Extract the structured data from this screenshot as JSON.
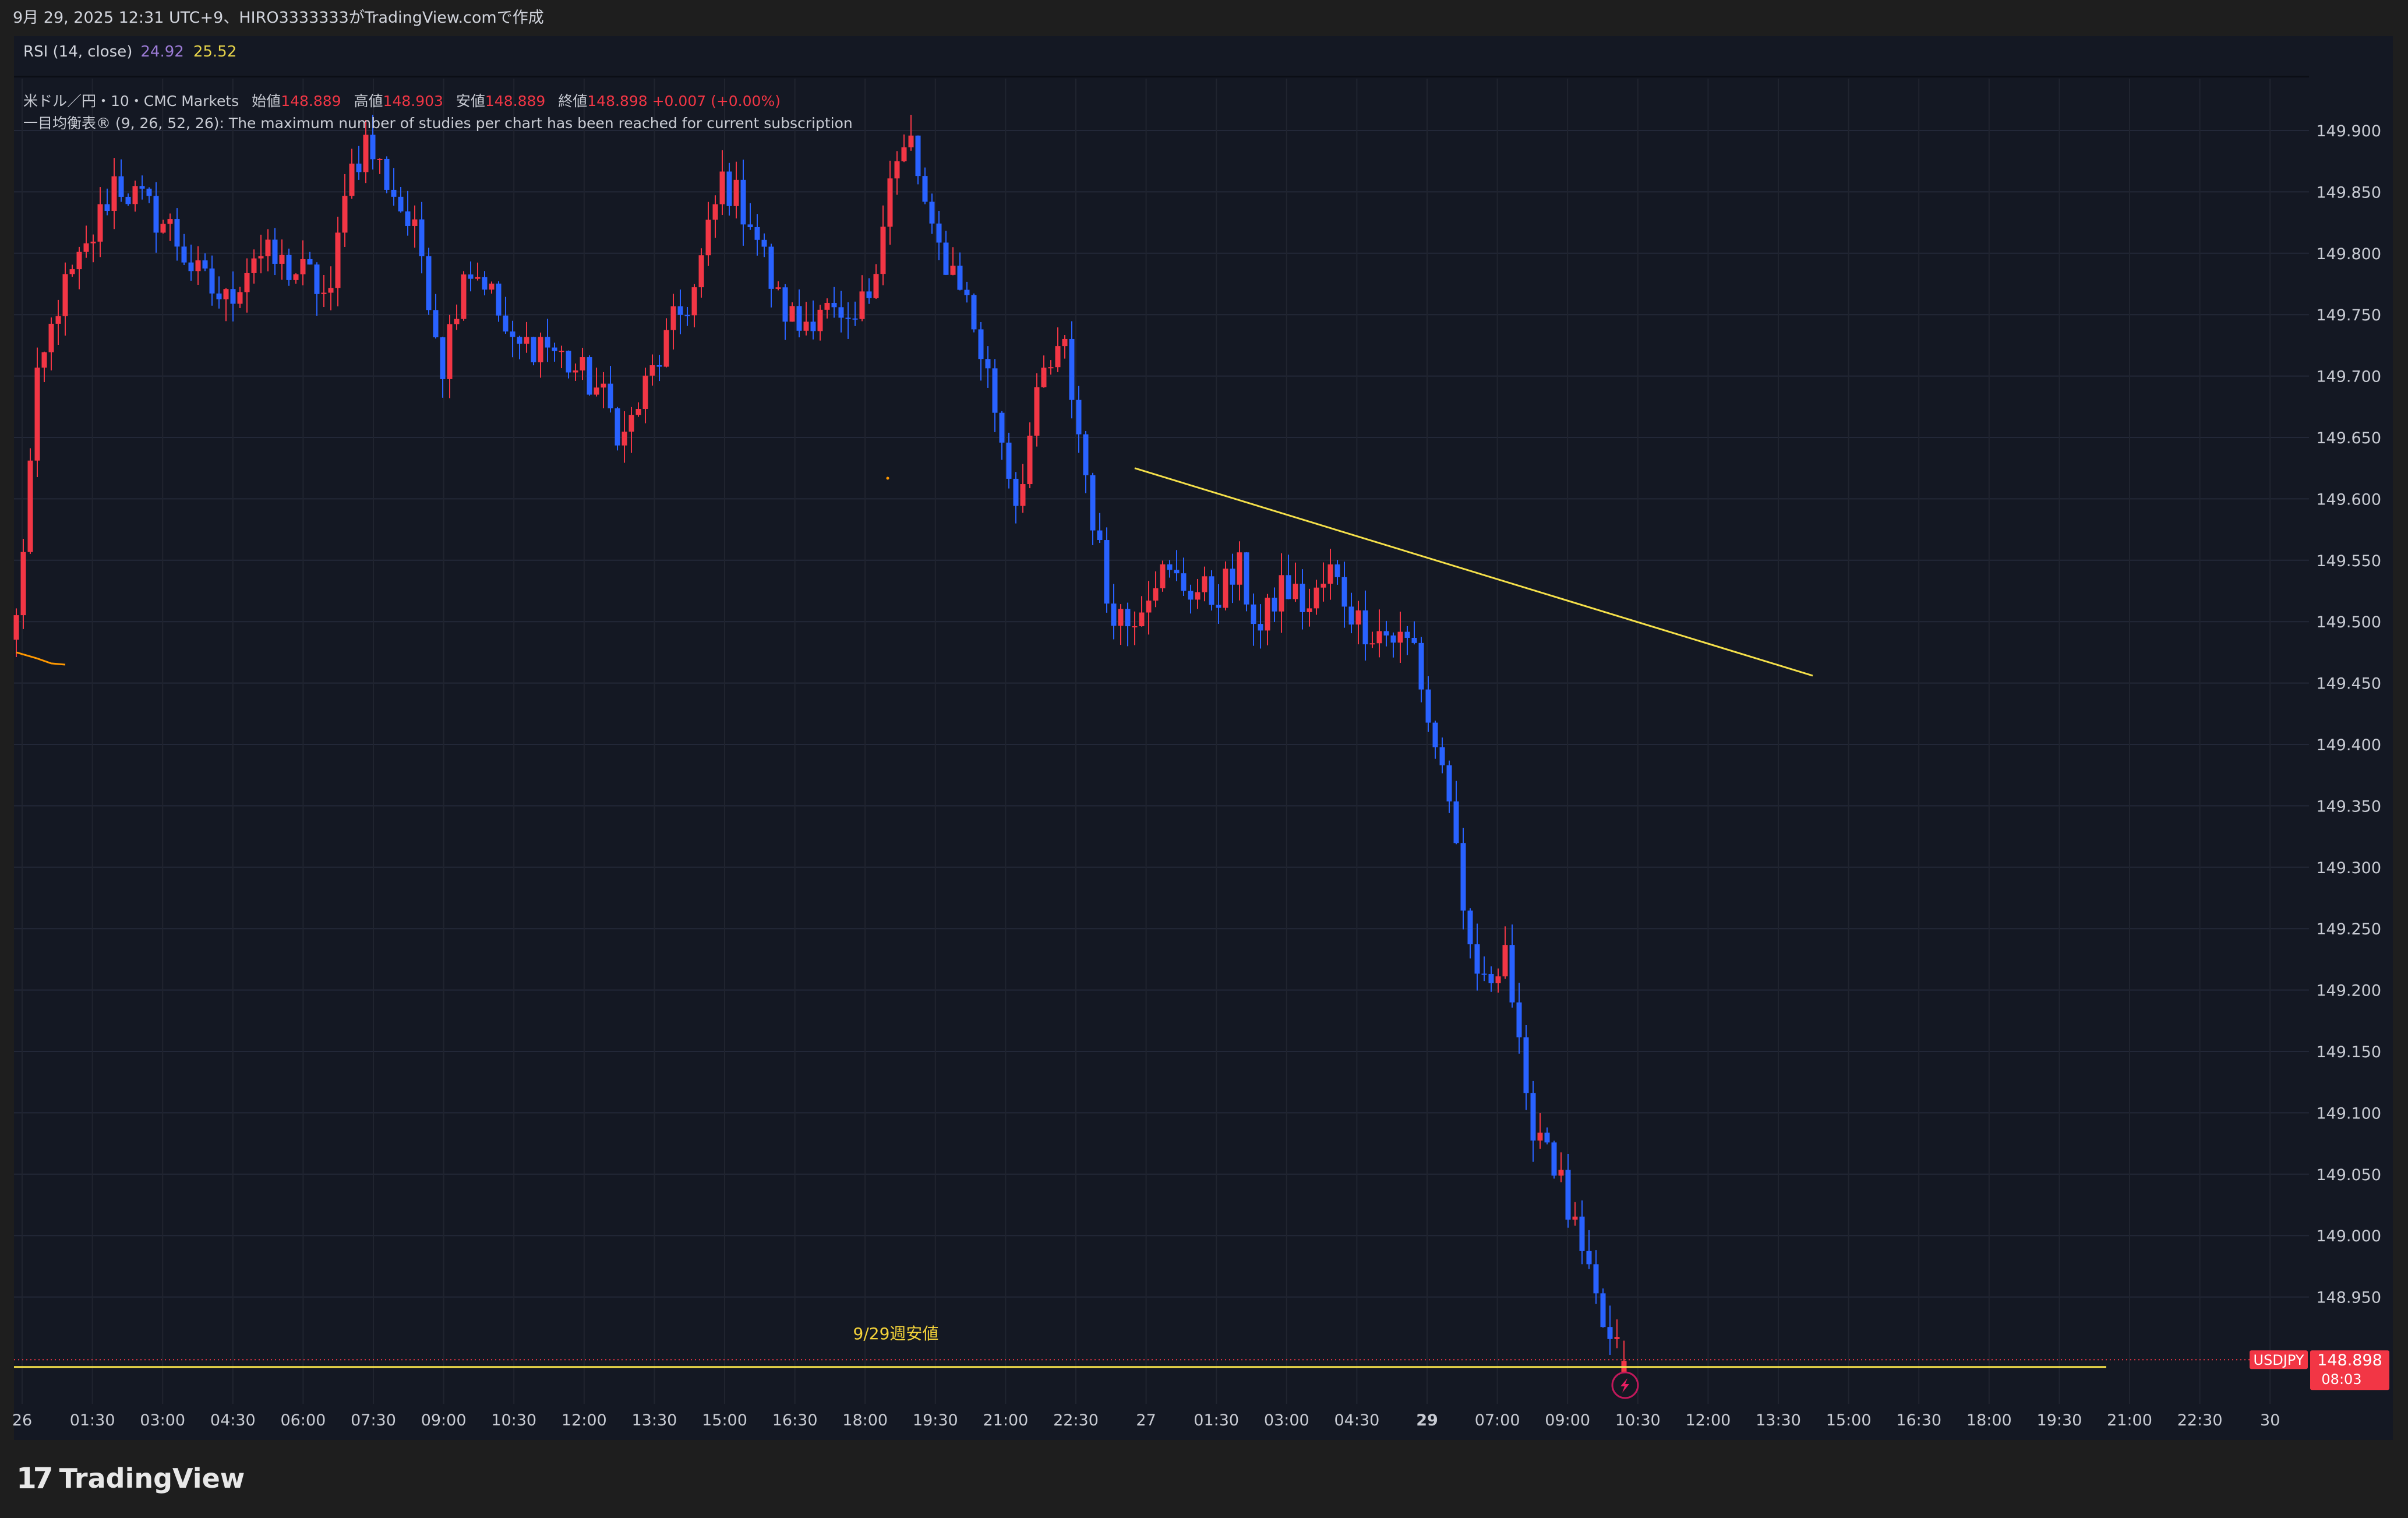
{
  "header": {
    "title": "9月 29, 2025 12:31 UTC+9、HIRO3333333がTradingView.comで作成"
  },
  "rsi": {
    "label": "RSI (14, close)",
    "value1": "24.92",
    "value2": "25.52"
  },
  "legend": {
    "symbol": "米ドル／円・10・CMC Markets",
    "open_label": "始値",
    "open": "148.889",
    "high_label": "高値",
    "high": "148.903",
    "low_label": "安値",
    "low": "148.889",
    "close_label": "終値",
    "close": "148.898",
    "change": "+0.007 (+0.00%)",
    "ichimoku": "一目均衡表® (9, 26, 52, 26): The maximum number of studies per chart has been reached for current subscription"
  },
  "annotation": {
    "text": "9/29週安値"
  },
  "ticker": {
    "symbol": "USDJPY",
    "price": "148.898",
    "countdown": "08:03"
  },
  "brand": {
    "name": "TradingView"
  },
  "colors": {
    "background": "#141823",
    "bull": "#f23645",
    "bear": "#2962ff",
    "trendline": "#f5e04a",
    "ichimoku": "#ff9800"
  },
  "chart_data": {
    "type": "candlestick",
    "symbol": "USDJPY",
    "interval": "10",
    "y_ticks": [
      149.9,
      149.85,
      149.8,
      149.75,
      149.7,
      149.65,
      149.6,
      149.55,
      149.5,
      149.45,
      149.4,
      149.35,
      149.3,
      149.25,
      149.2,
      149.15,
      149.1,
      149.05,
      149.0,
      148.95
    ],
    "y_tick_labels": [
      "149.900",
      "149.850",
      "149.800",
      "149.750",
      "149.700",
      "149.650",
      "149.600",
      "149.550",
      "149.500",
      "149.450",
      "149.400",
      "149.350",
      "149.300",
      "149.250",
      "149.200",
      "149.150",
      "149.100",
      "149.050",
      "149.000",
      "148.950"
    ],
    "ylim": [
      148.892,
      149.94
    ],
    "x_tick_labels": [
      "26",
      "01:30",
      "03:00",
      "04:30",
      "06:00",
      "07:30",
      "09:00",
      "10:30",
      "12:00",
      "13:30",
      "15:00",
      "16:30",
      "18:00",
      "19:30",
      "21:00",
      "22:30",
      "27",
      "01:30",
      "03:00",
      "04:30",
      "29",
      "07:00",
      "09:00",
      "10:30",
      "12:00",
      "13:30",
      "15:00",
      "16:30",
      "18:00",
      "19:30",
      "21:00",
      "22:30",
      "30"
    ],
    "bold_x_ticks": [
      "29"
    ],
    "anchors": [
      [
        0,
        149.5
      ],
      [
        3,
        149.69
      ],
      [
        6,
        149.76
      ],
      [
        10,
        149.8
      ],
      [
        14,
        149.86
      ],
      [
        18,
        149.84
      ],
      [
        22,
        149.82
      ],
      [
        26,
        149.78
      ],
      [
        30,
        149.76
      ],
      [
        34,
        149.8
      ],
      [
        38,
        149.79
      ],
      [
        42,
        149.78
      ],
      [
        45,
        149.76
      ],
      [
        47,
        149.86
      ],
      [
        50,
        149.89
      ],
      [
        54,
        149.85
      ],
      [
        58,
        149.8
      ],
      [
        61,
        149.71
      ],
      [
        64,
        149.79
      ],
      [
        67,
        149.78
      ],
      [
        71,
        149.72
      ],
      [
        75,
        149.73
      ],
      [
        79,
        149.71
      ],
      [
        83,
        149.69
      ],
      [
        87,
        149.65
      ],
      [
        90,
        149.69
      ],
      [
        94,
        149.74
      ],
      [
        97,
        149.77
      ],
      [
        101,
        149.86
      ],
      [
        105,
        149.83
      ],
      [
        109,
        149.76
      ],
      [
        112,
        149.74
      ],
      [
        115,
        149.76
      ],
      [
        119,
        149.73
      ],
      [
        122,
        149.77
      ],
      [
        125,
        149.86
      ],
      [
        128,
        149.89
      ],
      [
        131,
        149.81
      ],
      [
        135,
        149.78
      ],
      [
        139,
        149.7
      ],
      [
        143,
        149.6
      ],
      [
        147,
        149.7
      ],
      [
        150,
        149.72
      ],
      [
        153,
        149.62
      ],
      [
        156,
        149.52
      ],
      [
        159,
        149.5
      ],
      [
        163,
        149.54
      ],
      [
        167,
        149.53
      ],
      [
        171,
        149.52
      ],
      [
        175,
        149.54
      ],
      [
        178,
        149.49
      ],
      [
        181,
        149.53
      ],
      [
        185,
        149.51
      ],
      [
        188,
        149.54
      ],
      [
        192,
        149.5
      ],
      [
        196,
        149.49
      ],
      [
        200,
        149.48
      ],
      [
        202,
        149.42
      ],
      [
        205,
        149.36
      ],
      [
        207,
        149.25
      ],
      [
        210,
        149.2
      ],
      [
        213,
        149.24
      ],
      [
        216,
        149.1
      ],
      [
        219,
        149.08
      ],
      [
        222,
        149.02
      ],
      [
        225,
        148.96
      ],
      [
        228,
        148.91
      ],
      [
        230,
        148.898
      ]
    ],
    "ichimoku_line": [
      [
        0,
        149.475
      ],
      [
        3,
        149.47
      ],
      [
        5,
        149.466
      ],
      [
        7,
        149.465
      ]
    ],
    "trendline": {
      "start": [
        160,
        149.625
      ],
      "end": [
        257,
        149.456
      ]
    },
    "support_line": {
      "price": 148.893,
      "end_index": 299
    },
    "current_price": 148.898
  }
}
